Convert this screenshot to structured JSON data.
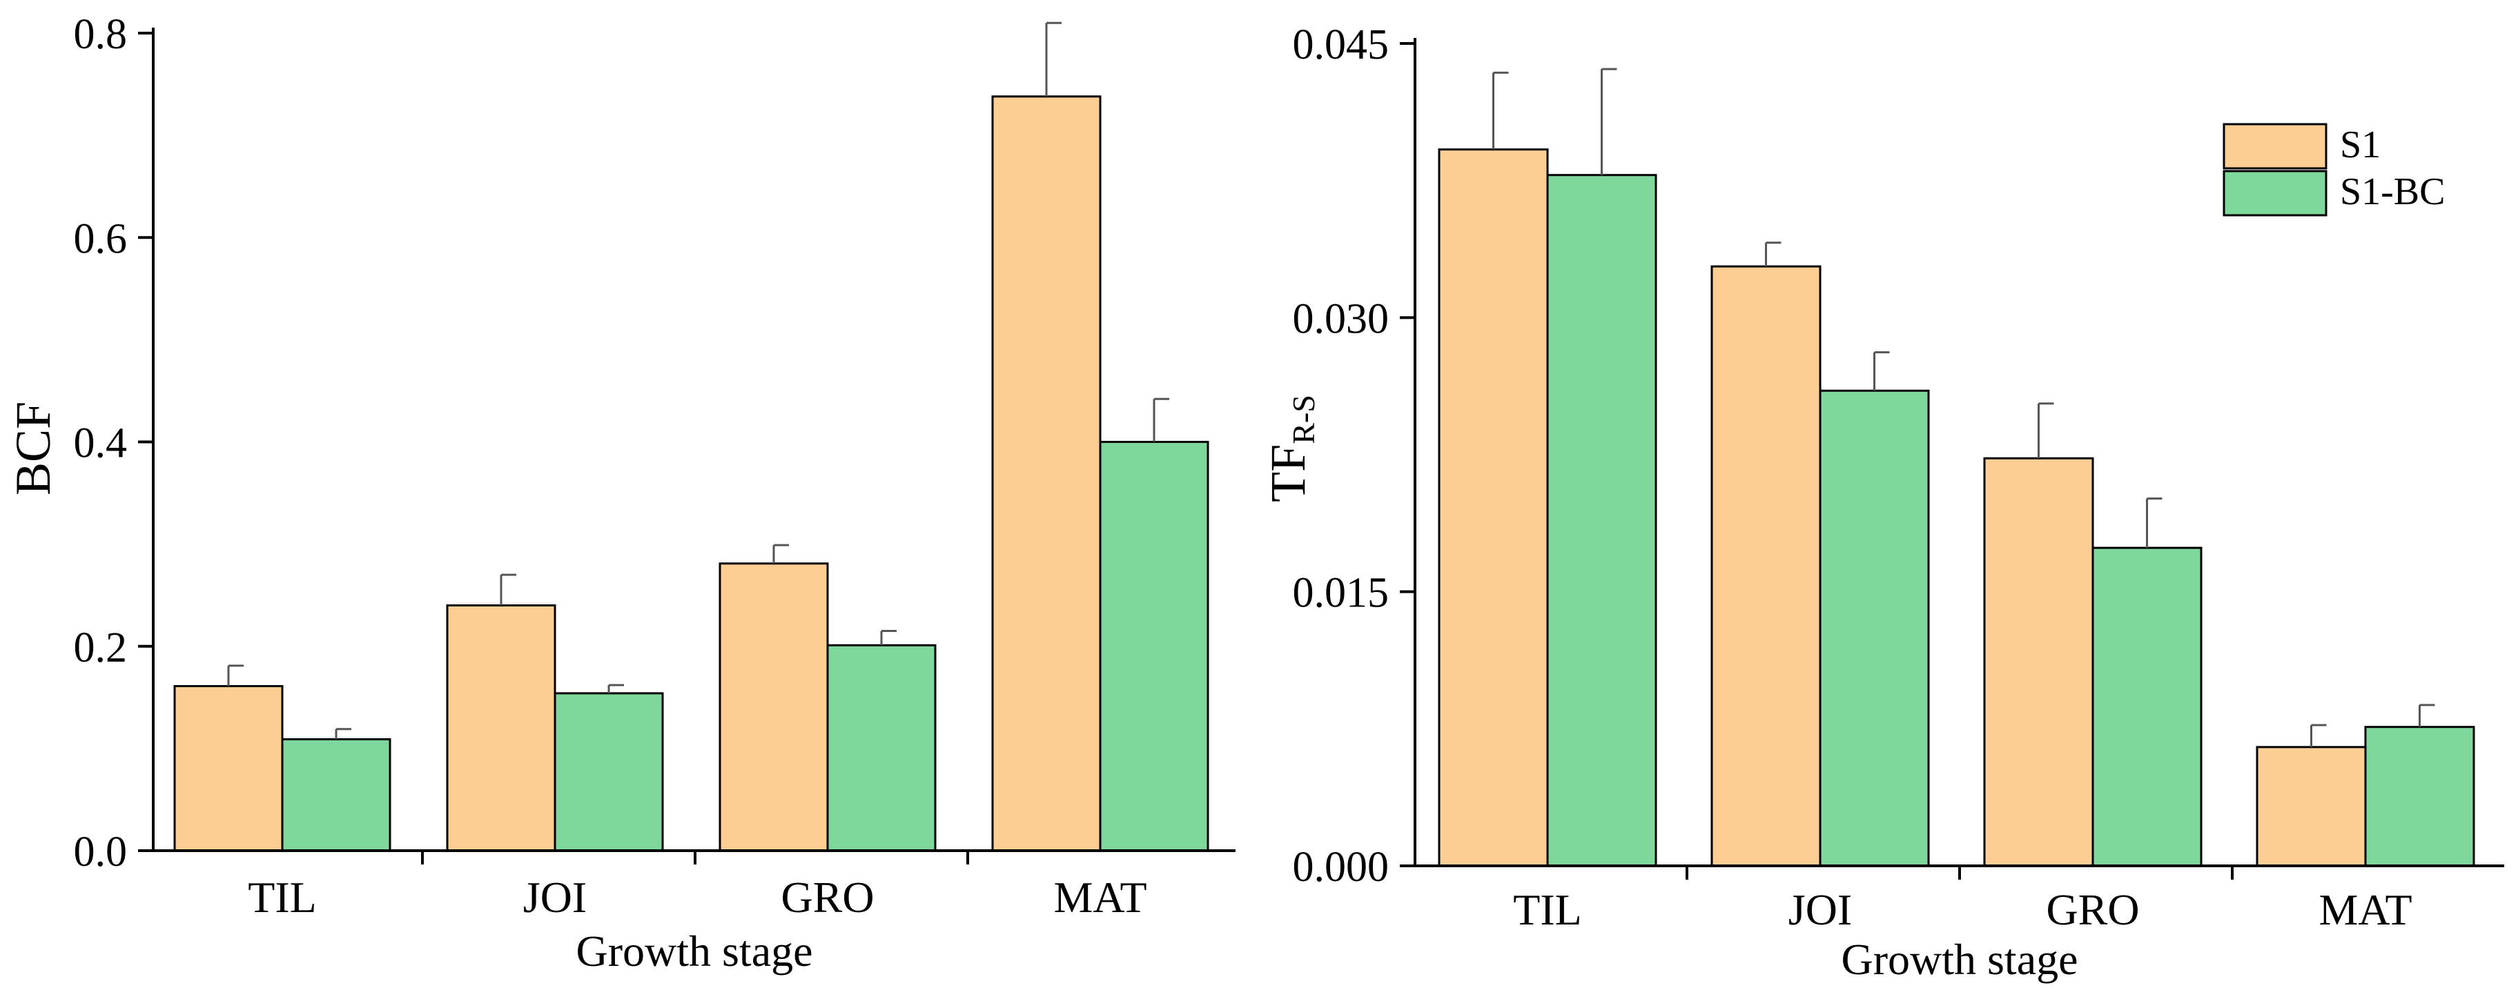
{
  "chart_data": [
    {
      "type": "bar",
      "title": "",
      "xlabel": "Growth stage",
      "ylabel": "BCF",
      "ylabel_sub": "",
      "categories": [
        "TIL",
        "JOI",
        "GRO",
        "MAT"
      ],
      "ylim": [
        0,
        0.8
      ],
      "yticks": [
        0.0,
        0.2,
        0.4,
        0.6,
        0.8
      ],
      "ytick_labels": [
        "0.0",
        "0.2",
        "0.4",
        "0.6",
        "0.8"
      ],
      "series": [
        {
          "name": "S1",
          "values": [
            0.161,
            0.24,
            0.281,
            0.738
          ],
          "errors": [
            0.02,
            0.03,
            0.018,
            0.072
          ]
        },
        {
          "name": "S1-BC",
          "values": [
            0.109,
            0.154,
            0.201,
            0.4
          ],
          "errors": [
            0.01,
            0.008,
            0.014,
            0.042
          ]
        }
      ],
      "grid": false,
      "legend": null
    },
    {
      "type": "bar",
      "title": "",
      "xlabel": "Growth stage",
      "ylabel": "TF",
      "ylabel_sub": "R-S",
      "categories": [
        "TIL",
        "JOI",
        "GRO",
        "MAT"
      ],
      "ylim": [
        0,
        0.045
      ],
      "yticks": [
        0.0,
        0.015,
        0.03,
        0.045
      ],
      "ytick_labels": [
        "0.000",
        "0.015",
        "0.030",
        "0.045"
      ],
      "series": [
        {
          "name": "S1",
          "values": [
            0.0392,
            0.0328,
            0.0223,
            0.0065
          ],
          "errors": [
            0.0042,
            0.0013,
            0.003,
            0.0012
          ]
        },
        {
          "name": "S1-BC",
          "values": [
            0.0378,
            0.026,
            0.0174,
            0.0076
          ],
          "errors": [
            0.0058,
            0.0021,
            0.0027,
            0.0012
          ]
        }
      ],
      "grid": false,
      "legend": "top-right"
    }
  ],
  "colors": {
    "S1": "#fdce93",
    "S1-BC": "#7ed79b",
    "axis": "#000000"
  }
}
